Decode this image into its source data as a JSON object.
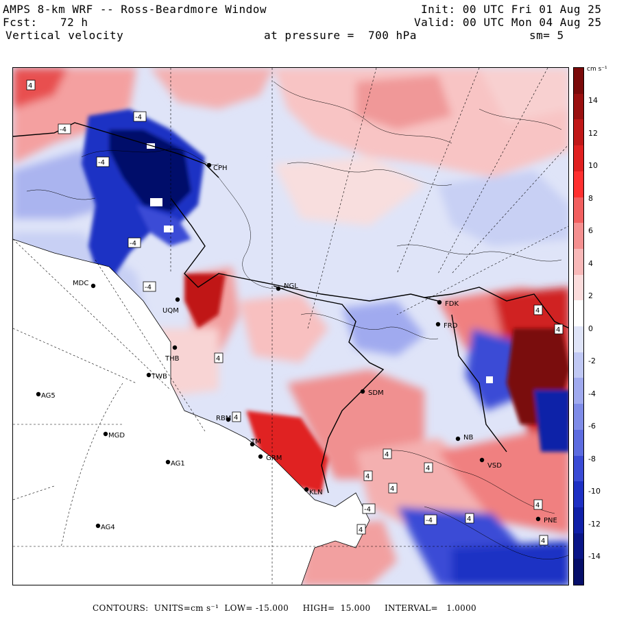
{
  "header": {
    "title": "AMPS 8-km WRF -- Ross-Beardmore Window",
    "init": "Init: 00 UTC Fri 01 Aug 25",
    "fcst_label": "Fcst:",
    "fcst_value": "72 h",
    "valid": "Valid: 00 UTC Mon 04 Aug 25",
    "field": "Vertical velocity",
    "level": "at pressure =  700 hPa",
    "smoothing": "sm= 5"
  },
  "colorbar": {
    "units": "cm s⁻¹",
    "ticks": [
      "14",
      "12",
      "10",
      "8",
      "6",
      "4",
      "2",
      "0",
      "-2",
      "-4",
      "-6",
      "-8",
      "-10",
      "-12",
      "-14"
    ],
    "colors": [
      "#7a0a0a",
      "#9a1010",
      "#c01818",
      "#e02020",
      "#ff3030",
      "#f26060",
      "#f59090",
      "#f8b8b8",
      "#fbdcdc",
      "#ffffff",
      "#dfe4f8",
      "#c0c8f4",
      "#a0aaef",
      "#7f8ce8",
      "#5d6ce0",
      "#3a4bd6",
      "#1e30c4",
      "#1020a8",
      "#0a1688",
      "#060f6a"
    ]
  },
  "stations": [
    {
      "name": "CPH"
    },
    {
      "name": "MDC"
    },
    {
      "name": "NGL"
    },
    {
      "name": "FDK"
    },
    {
      "name": "FRD"
    },
    {
      "name": "UQM"
    },
    {
      "name": "THB"
    },
    {
      "name": "TWB"
    },
    {
      "name": "AG5"
    },
    {
      "name": "SDM"
    },
    {
      "name": "MGD"
    },
    {
      "name": "RBM"
    },
    {
      "name": "TM"
    },
    {
      "name": "GRM"
    },
    {
      "name": "AG1"
    },
    {
      "name": "NB"
    },
    {
      "name": "VSD"
    },
    {
      "name": "KLN"
    },
    {
      "name": "AG4"
    },
    {
      "name": "PNE"
    }
  ],
  "contour_labels": [
    "4",
    "-4",
    "-4",
    "-4",
    "-4",
    "-4",
    "4",
    "4",
    "4",
    "4",
    "4",
    "4",
    "-4",
    "4",
    "4",
    "4",
    "-4",
    "4",
    "4",
    "4"
  ],
  "footer": {
    "contours": "CONTOURS:  UNITS=cm s⁻¹  LOW= -15.000     HIGH=  15.000     INTERVAL=   1.0000"
  }
}
